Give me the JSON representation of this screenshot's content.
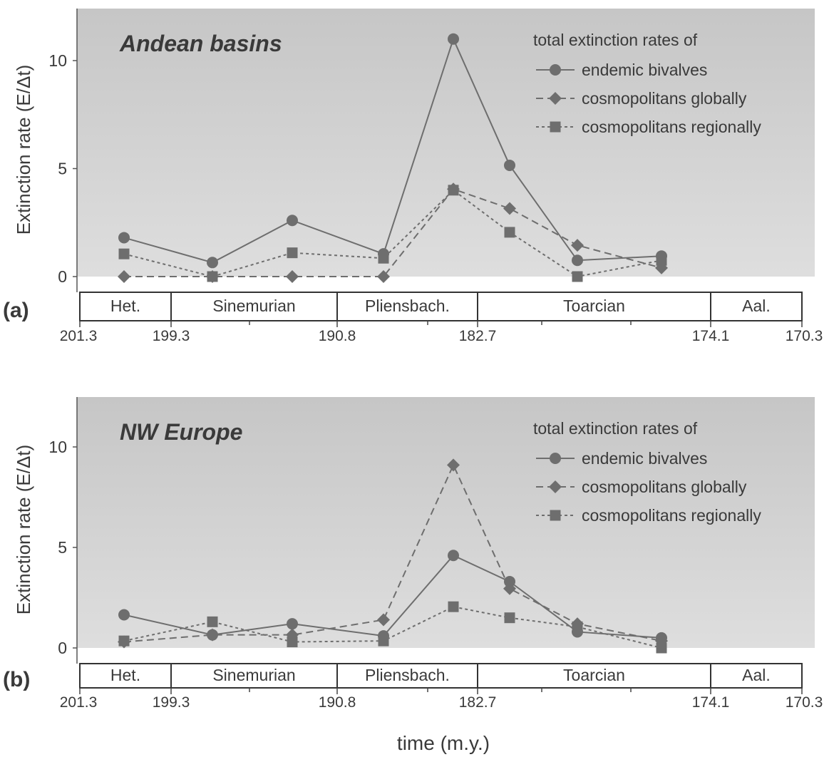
{
  "figure": {
    "x_axis_title": "time (m.y.)",
    "y_axis_title": "Extinction rate (E/Δt)",
    "x_tick_labels": [
      "201.3",
      "199.3",
      "190.8",
      "182.7",
      "174.1",
      "170.3"
    ],
    "stages": [
      "Het.",
      "Sinemurian",
      "Pliensbach.",
      "Toarcian",
      "Aal."
    ],
    "legend_title": "total extinction rates of",
    "colors": {
      "plot_background": "#d3d3d3",
      "series": "#6e6e6e",
      "text": "#3a3a3a"
    }
  },
  "chart_data": [
    {
      "type": "line",
      "panel_label": "(a)",
      "title": "Andean basins",
      "ylabel": "Extinction rate (E/Δt)",
      "xlabel": "time (m.y.)",
      "ylim": [
        0,
        12.5
      ],
      "yticks": [
        0,
        5,
        10
      ],
      "x_categories": [
        "Het.",
        "Sinemurian 1",
        "Sinemurian 2",
        "Pliensbach. 1",
        "Pliensbach. 2",
        "Toarcian 1",
        "Toarcian 2",
        "Toarcian 3"
      ],
      "legend": {
        "title": "total extinction rates of",
        "position": "top-right"
      },
      "series": [
        {
          "name": "endemic bivalves",
          "marker": "circle",
          "dash": "solid",
          "values": [
            1.8,
            0.65,
            2.6,
            1.05,
            11.0,
            5.15,
            0.75,
            0.95
          ]
        },
        {
          "name": "cosmopolitans globally",
          "marker": "diamond",
          "dash": "dashed",
          "values": [
            0,
            0,
            0,
            0,
            4.05,
            3.15,
            1.45,
            0.4
          ]
        },
        {
          "name": "cosmopolitans regionally",
          "marker": "square",
          "dash": "dotted",
          "values": [
            1.05,
            0,
            1.1,
            0.85,
            4.0,
            2.05,
            0,
            0.75
          ]
        }
      ]
    },
    {
      "type": "line",
      "panel_label": "(b)",
      "title": "NW Europe",
      "ylabel": "Extinction rate (E/Δt)",
      "xlabel": "time (m.y.)",
      "ylim": [
        0,
        12.5
      ],
      "yticks": [
        0,
        5,
        10
      ],
      "x_categories": [
        "Het.",
        "Sinemurian 1",
        "Sinemurian 2",
        "Pliensbach. 1",
        "Pliensbach. 2",
        "Toarcian 1",
        "Toarcian 2",
        "Toarcian 3"
      ],
      "legend": {
        "title": "total extinction rates of",
        "position": "top-right"
      },
      "series": [
        {
          "name": "endemic bivalves",
          "marker": "circle",
          "dash": "solid",
          "values": [
            1.65,
            0.65,
            1.2,
            0.6,
            4.6,
            3.3,
            0.8,
            0.5
          ]
        },
        {
          "name": "cosmopolitans globally",
          "marker": "diamond",
          "dash": "dashed",
          "values": [
            0.3,
            0.65,
            0.65,
            1.4,
            9.1,
            2.95,
            1.2,
            0.35
          ]
        },
        {
          "name": "cosmopolitans regionally",
          "marker": "square",
          "dash": "dotted",
          "values": [
            0.35,
            1.3,
            0.3,
            0.35,
            2.05,
            1.5,
            1.05,
            0
          ]
        }
      ]
    }
  ]
}
